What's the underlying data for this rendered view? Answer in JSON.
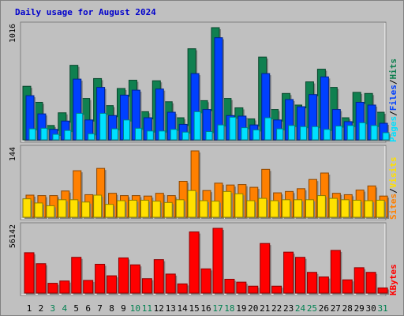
{
  "title": "Daily usage for August 2024",
  "colors": {
    "background": "#c0c0c0",
    "hits": "#108050",
    "files": "#0040ff",
    "pages": "#00e0ff",
    "visits": "#ff8000",
    "sites": "#ffe000",
    "kbytes": "#ff0000",
    "weekend_day": "#008050",
    "weekday": "#000000"
  },
  "chart_data": [
    {
      "type": "bar",
      "panel": "hits-files-pages",
      "categories": [
        "1",
        "2",
        "3",
        "4",
        "5",
        "6",
        "7",
        "8",
        "9",
        "10",
        "11",
        "12",
        "13",
        "14",
        "15",
        "16",
        "17",
        "18",
        "19",
        "20",
        "21",
        "22",
        "23",
        "24",
        "25",
        "26",
        "27",
        "28",
        "29",
        "30",
        "31"
      ],
      "weekend_days": [
        "3",
        "4",
        "10",
        "11",
        "17",
        "18",
        "24",
        "25",
        "31"
      ],
      "max_label": "1016",
      "ymax": 1016,
      "legend": [
        {
          "text": "Pages",
          "color": "#00e0ff"
        },
        {
          "text": "/",
          "color": "#000000"
        },
        {
          "text": "Files",
          "color": "#0040ff"
        },
        {
          "text": "/",
          "color": "#000000"
        },
        {
          "text": "Hits",
          "color": "#108050"
        }
      ],
      "series": [
        {
          "name": "Hits",
          "values": [
            485,
            340,
            130,
            245,
            675,
            375,
            555,
            310,
            465,
            540,
            255,
            535,
            345,
            200,
            825,
            355,
            1016,
            375,
            290,
            190,
            750,
            275,
            420,
            315,
            525,
            640,
            475,
            200,
            430,
            420,
            250
          ]
        },
        {
          "name": "Files",
          "values": [
            400,
            235,
            95,
            170,
            550,
            180,
            475,
            220,
            405,
            450,
            200,
            460,
            250,
            140,
            600,
            275,
            925,
            220,
            215,
            135,
            600,
            180,
            365,
            300,
            410,
            570,
            275,
            165,
            340,
            315,
            150
          ]
        },
        {
          "name": "Pages",
          "values": [
            100,
            105,
            50,
            85,
            240,
            55,
            240,
            100,
            180,
            105,
            80,
            80,
            95,
            70,
            255,
            75,
            135,
            205,
            110,
            90,
            200,
            100,
            130,
            120,
            120,
            95,
            125,
            130,
            155,
            130,
            65
          ]
        }
      ]
    },
    {
      "type": "bar",
      "panel": "visits-sites",
      "categories": [
        "1",
        "2",
        "3",
        "4",
        "5",
        "6",
        "7",
        "8",
        "9",
        "10",
        "11",
        "12",
        "13",
        "14",
        "15",
        "16",
        "17",
        "18",
        "19",
        "20",
        "21",
        "22",
        "23",
        "24",
        "25",
        "26",
        "27",
        "28",
        "29",
        "30",
        "31"
      ],
      "max_label": "144",
      "ymax": 144,
      "legend": [
        {
          "text": "Sites",
          "color": "#ff8000"
        },
        {
          "text": "/",
          "color": "#000000"
        },
        {
          "text": "Visits",
          "color": "#ffe000"
        }
      ],
      "series": [
        {
          "name": "Visits",
          "values": [
            48,
            47,
            47,
            57,
            101,
            49,
            106,
            52,
            47,
            47,
            46,
            52,
            47,
            78,
            144,
            58,
            74,
            70,
            71,
            65,
            104,
            53,
            56,
            62,
            82,
            96,
            52,
            49,
            59,
            68,
            46
          ]
        },
        {
          "name": "Sites",
          "values": [
            40,
            31,
            25,
            38,
            38,
            33,
            48,
            28,
            36,
            37,
            37,
            35,
            32,
            38,
            58,
            36,
            35,
            56,
            51,
            36,
            41,
            36,
            38,
            38,
            38,
            47,
            41,
            38,
            37,
            36,
            37
          ]
        }
      ]
    },
    {
      "type": "bar",
      "panel": "kbytes",
      "categories": [
        "1",
        "2",
        "3",
        "4",
        "5",
        "6",
        "7",
        "8",
        "9",
        "10",
        "11",
        "12",
        "13",
        "14",
        "15",
        "16",
        "17",
        "18",
        "19",
        "20",
        "21",
        "22",
        "23",
        "24",
        "25",
        "26",
        "27",
        "28",
        "29",
        "30",
        "31"
      ],
      "max_label": "56142",
      "ymax": 56142,
      "legend": [
        {
          "text": "KBytes",
          "color": "#ff0000"
        }
      ],
      "series": [
        {
          "name": "KBytes",
          "values": [
            35000,
            25500,
            8500,
            10500,
            31000,
            11000,
            25000,
            15000,
            30500,
            24500,
            12500,
            29000,
            16500,
            8000,
            53000,
            21000,
            56142,
            12000,
            9500,
            6000,
            43000,
            6000,
            35500,
            31000,
            18000,
            14000,
            37000,
            11500,
            22000,
            18000,
            4500
          ]
        }
      ]
    }
  ]
}
